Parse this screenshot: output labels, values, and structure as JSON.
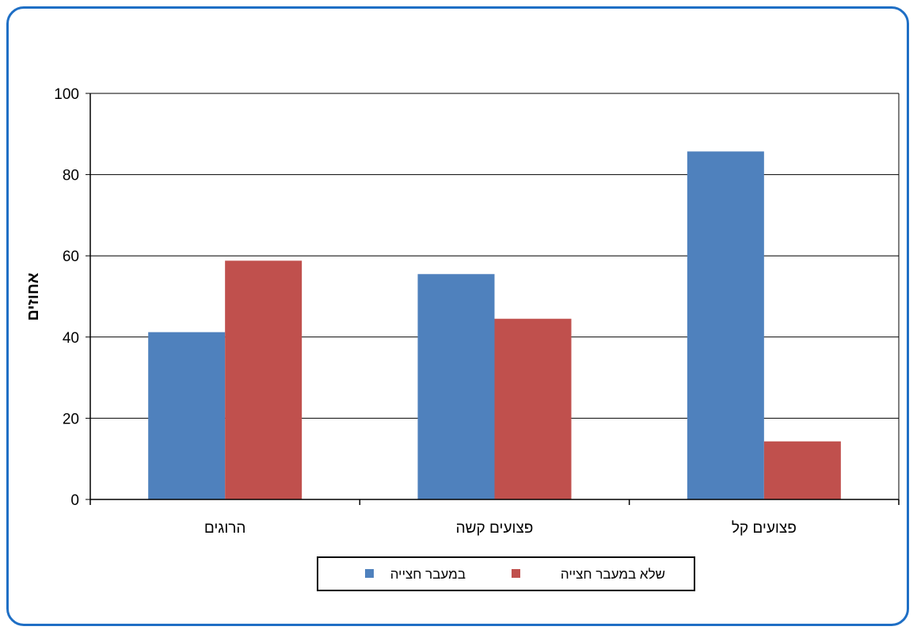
{
  "chart_data": {
    "type": "bar",
    "title": "",
    "xlabel": "",
    "ylabel": "אחוזים",
    "ylim": [
      0,
      100
    ],
    "yticks": [
      0,
      20,
      40,
      60,
      80,
      100
    ],
    "categories": [
      "הרוגים",
      "פצועים קשה",
      "פצועים קל"
    ],
    "series": [
      {
        "name": "במעבר חצייה",
        "color": "#4f81bd",
        "values": [
          41.2,
          55.5,
          85.7
        ]
      },
      {
        "name": "שלא במעבר חצייה",
        "color": "#c0504d",
        "values": [
          58.8,
          44.5,
          14.3
        ]
      }
    ],
    "grid": true,
    "legend_position": "bottom"
  },
  "colors": {
    "frame_border": "#1f6fc5",
    "gridline": "#000000"
  }
}
